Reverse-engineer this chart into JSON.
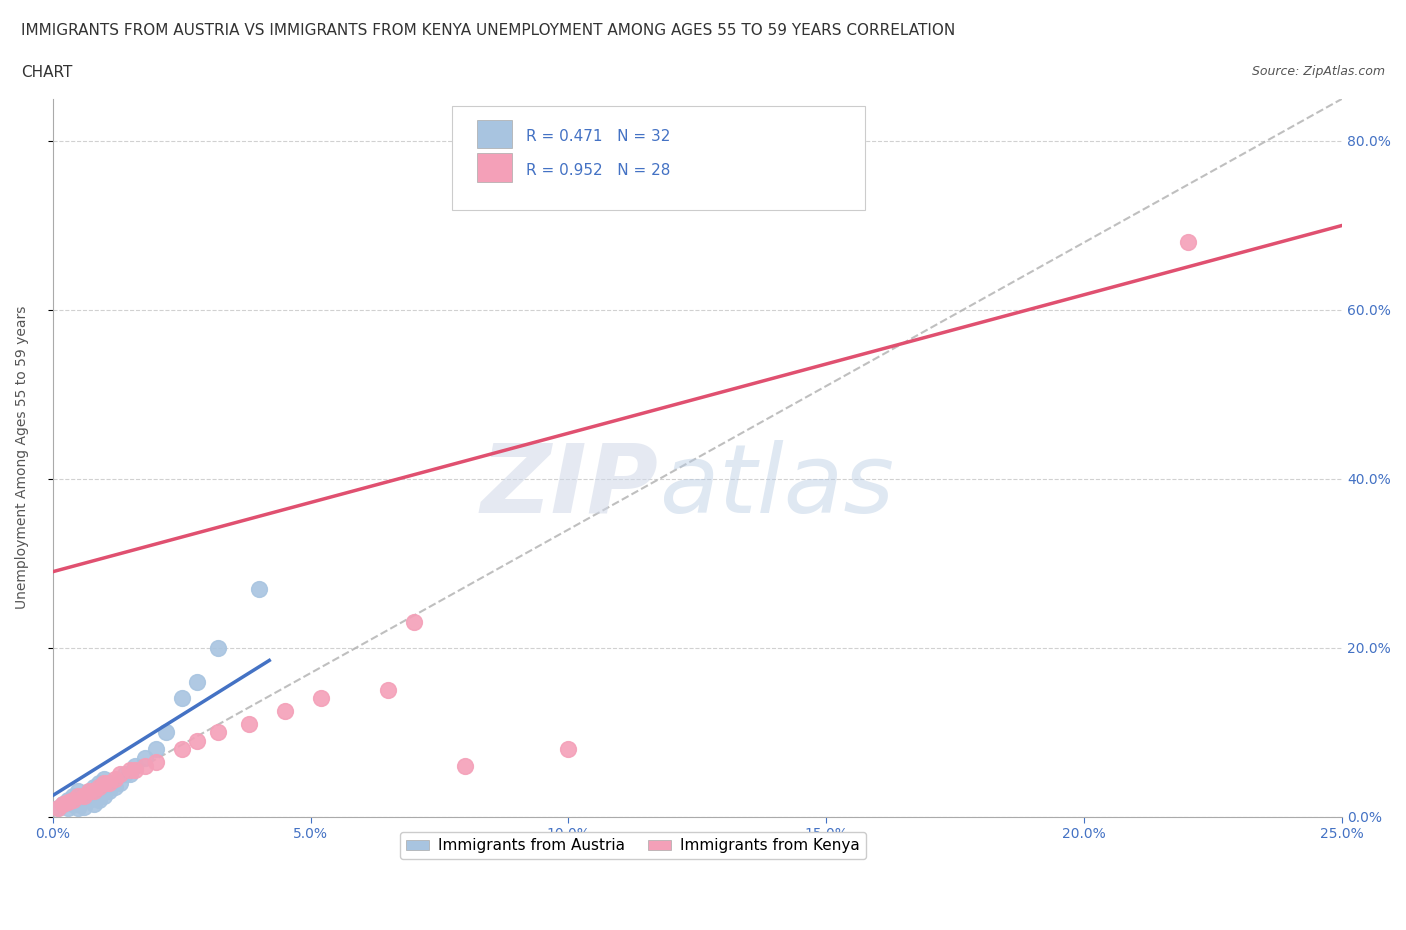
{
  "title_line1": "IMMIGRANTS FROM AUSTRIA VS IMMIGRANTS FROM KENYA UNEMPLOYMENT AMONG AGES 55 TO 59 YEARS CORRELATION",
  "title_line2": "CHART",
  "source": "Source: ZipAtlas.com",
  "ylabel": "Unemployment Among Ages 55 to 59 years",
  "xlim": [
    0.0,
    0.25
  ],
  "ylim": [
    0.0,
    0.85
  ],
  "xticks": [
    0.0,
    0.05,
    0.1,
    0.15,
    0.2,
    0.25
  ],
  "yticks": [
    0.0,
    0.2,
    0.4,
    0.6,
    0.8
  ],
  "austria_R": 0.471,
  "austria_N": 32,
  "kenya_R": 0.952,
  "kenya_N": 28,
  "austria_color": "#a8c4e0",
  "austria_line_color": "#4472c4",
  "kenya_color": "#f4a0b8",
  "kenya_line_color": "#e05070",
  "austria_scatter_x": [
    0.001,
    0.002,
    0.003,
    0.003,
    0.004,
    0.004,
    0.005,
    0.005,
    0.005,
    0.006,
    0.006,
    0.007,
    0.007,
    0.008,
    0.008,
    0.009,
    0.009,
    0.01,
    0.01,
    0.011,
    0.012,
    0.013,
    0.014,
    0.015,
    0.016,
    0.018,
    0.02,
    0.022,
    0.025,
    0.028,
    0.032,
    0.04
  ],
  "austria_scatter_y": [
    0.01,
    0.015,
    0.01,
    0.02,
    0.015,
    0.025,
    0.01,
    0.015,
    0.03,
    0.012,
    0.025,
    0.02,
    0.03,
    0.015,
    0.035,
    0.02,
    0.04,
    0.025,
    0.045,
    0.03,
    0.035,
    0.04,
    0.05,
    0.05,
    0.06,
    0.07,
    0.08,
    0.1,
    0.14,
    0.16,
    0.2,
    0.27
  ],
  "kenya_scatter_x": [
    0.001,
    0.002,
    0.003,
    0.004,
    0.005,
    0.006,
    0.007,
    0.008,
    0.009,
    0.01,
    0.011,
    0.012,
    0.013,
    0.015,
    0.016,
    0.018,
    0.02,
    0.025,
    0.028,
    0.032,
    0.038,
    0.045,
    0.052,
    0.065,
    0.07,
    0.08,
    0.1,
    0.22
  ],
  "kenya_scatter_y": [
    0.01,
    0.015,
    0.018,
    0.02,
    0.025,
    0.025,
    0.03,
    0.03,
    0.035,
    0.04,
    0.04,
    0.045,
    0.05,
    0.055,
    0.055,
    0.06,
    0.065,
    0.08,
    0.09,
    0.1,
    0.11,
    0.125,
    0.14,
    0.15,
    0.23,
    0.06,
    0.08,
    0.68
  ],
  "austria_line_x": [
    0.0,
    0.042
  ],
  "austria_line_y": [
    0.025,
    0.185
  ],
  "kenya_line_x": [
    0.0,
    0.25
  ],
  "kenya_line_y": [
    0.29,
    0.7
  ],
  "diag_line_x": [
    0.0,
    0.25
  ],
  "diag_line_y": [
    0.0,
    0.85
  ],
  "background_color": "#ffffff",
  "grid_color": "#cccccc",
  "watermark_zip": "ZIP",
  "watermark_atlas": "atlas",
  "title_fontsize": 11,
  "axis_label_fontsize": 10,
  "tick_fontsize": 10,
  "legend_fontsize": 11,
  "source_fontsize": 9
}
